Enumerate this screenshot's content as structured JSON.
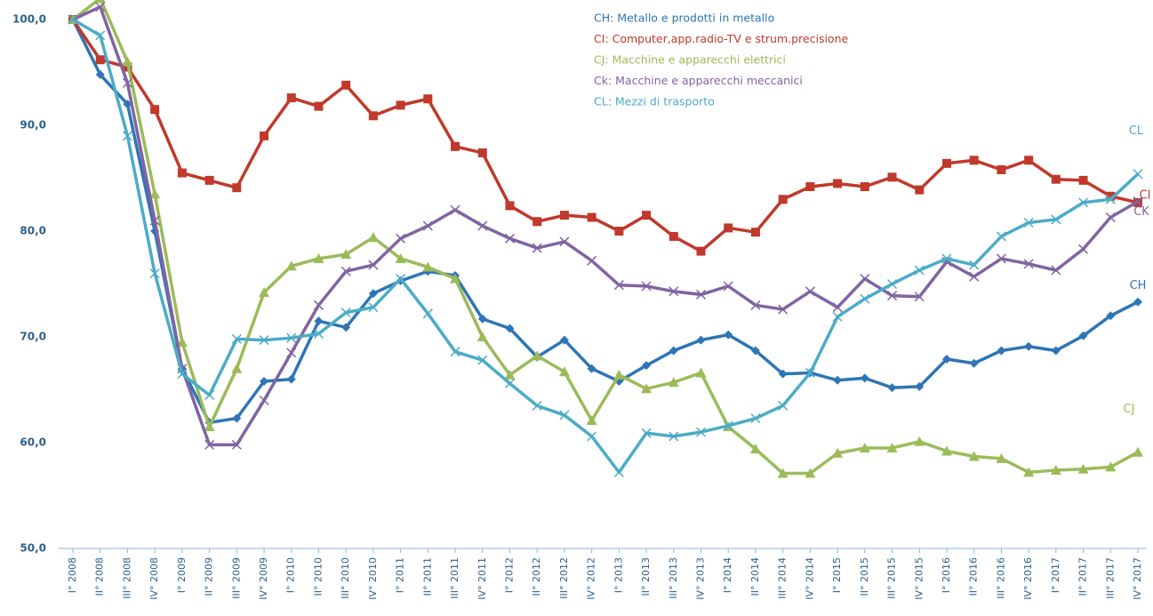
{
  "chart_data": {
    "type": "line",
    "categories": [
      "I° 2008",
      "II° 2008",
      "III° 2008",
      "IV° 2008",
      "I° 2009",
      "II° 2009",
      "III° 2009",
      "IV° 2009",
      "I° 2010",
      "II° 2010",
      "III° 2010",
      "IV° 2010",
      "I° 2011",
      "II° 2011",
      "III° 2011",
      "IV° 2011",
      "I° 2012",
      "II° 2012",
      "III° 2012",
      "IV° 2012",
      "I° 2013",
      "II° 2013",
      "III° 2013",
      "IV° 2013",
      "I° 2014",
      "II° 2014",
      "III° 2014",
      "IV° 2014",
      "I° 2015",
      "II° 2015",
      "III° 2015",
      "IV° 2015",
      "I° 2016",
      "II° 2016",
      "III° 2016",
      "IV° 2016",
      "I° 2017",
      "II° 2017",
      "III° 2017",
      "IV° 2017"
    ],
    "ylim": [
      50,
      100
    ],
    "yticks": [
      {
        "value": 50,
        "label": "50,0"
      },
      {
        "value": 60,
        "label": "60,0"
      },
      {
        "value": 70,
        "label": "70,0"
      },
      {
        "value": 80,
        "label": "80,0"
      },
      {
        "value": 90,
        "label": "90,0"
      },
      {
        "value": 100,
        "label": "100,0"
      }
    ],
    "series": [
      {
        "name": "CH: Metallo e prodotti in metallo",
        "end_label": "CH",
        "color": "#2e75b6",
        "marker": "diamond",
        "values": [
          100,
          94.8,
          92,
          80,
          67,
          61.9,
          62.3,
          65.8,
          66,
          71.5,
          70.9,
          74.1,
          75.3,
          76.2,
          75.8,
          71.7,
          70.8,
          68.1,
          69.7,
          67,
          65.8,
          67.3,
          68.7,
          69.7,
          70.2,
          68.7,
          66.5,
          66.6,
          65.9,
          66.1,
          65.2,
          65.3,
          67.9,
          67.5,
          68.7,
          69.1,
          68.7,
          70.1,
          72,
          73.3
        ]
      },
      {
        "name": "CI: Computer,app.radio-TV e strum.precisione",
        "end_label": "CI",
        "color": "#c0392b",
        "marker": "square",
        "values": [
          100,
          96.2,
          95.5,
          91.5,
          85.5,
          84.8,
          84.1,
          89,
          92.6,
          91.8,
          93.8,
          90.9,
          91.9,
          92.5,
          88,
          87.4,
          82.4,
          80.9,
          81.5,
          81.3,
          80,
          81.5,
          79.5,
          78.1,
          80.3,
          79.9,
          83,
          84.2,
          84.5,
          84.2,
          85.1,
          83.9,
          86.4,
          86.7,
          85.8,
          86.7,
          84.9,
          84.8,
          83.3,
          82.7
        ]
      },
      {
        "name": "CJ: Macchine e apparecchi elettrici",
        "end_label": "CJ",
        "color": "#9bbb59",
        "marker": "triangle",
        "values": [
          100,
          102,
          96,
          83.5,
          69.5,
          61.5,
          67,
          74.2,
          76.7,
          77.4,
          77.8,
          79.4,
          77.4,
          76.6,
          75.5,
          70,
          66.4,
          68.2,
          66.7,
          62.1,
          66.4,
          65.1,
          65.7,
          66.6,
          61.5,
          59.4,
          57.1,
          57.1,
          59,
          59.5,
          59.5,
          60.1,
          59.2,
          58.7,
          58.5,
          57.2,
          57.4,
          57.5,
          57.7,
          59.1
        ]
      },
      {
        "name": "Ck: Macchine e apparecchi meccanici",
        "end_label": "CK",
        "color": "#8064a2",
        "marker": "x",
        "values": [
          100,
          101.2,
          94,
          81,
          67,
          59.8,
          59.8,
          64,
          68.5,
          73,
          76.2,
          76.8,
          79.3,
          80.5,
          82,
          80.5,
          79.3,
          78.4,
          79,
          77.2,
          74.9,
          74.8,
          74.3,
          74,
          74.8,
          73,
          72.6,
          74.3,
          72.8,
          75.5,
          73.9,
          73.8,
          77.1,
          75.7,
          77.4,
          76.9,
          76.3,
          78.3,
          81.3,
          82.8
        ]
      },
      {
        "name": "CL: Mezzi di trasporto",
        "end_label": "CL",
        "color": "#4bacc6",
        "marker": "x",
        "values": [
          100,
          98.5,
          89,
          76,
          66.5,
          64.5,
          69.8,
          69.7,
          69.9,
          70.3,
          72.3,
          72.8,
          75.5,
          72.2,
          68.6,
          67.8,
          65.6,
          63.5,
          62.6,
          60.6,
          57.2,
          60.9,
          60.6,
          61,
          61.6,
          62.3,
          63.5,
          66.6,
          71.9,
          73.6,
          75,
          76.3,
          77.4,
          76.8,
          79.5,
          80.8,
          81.1,
          82.7,
          83,
          85.4
        ]
      }
    ]
  }
}
